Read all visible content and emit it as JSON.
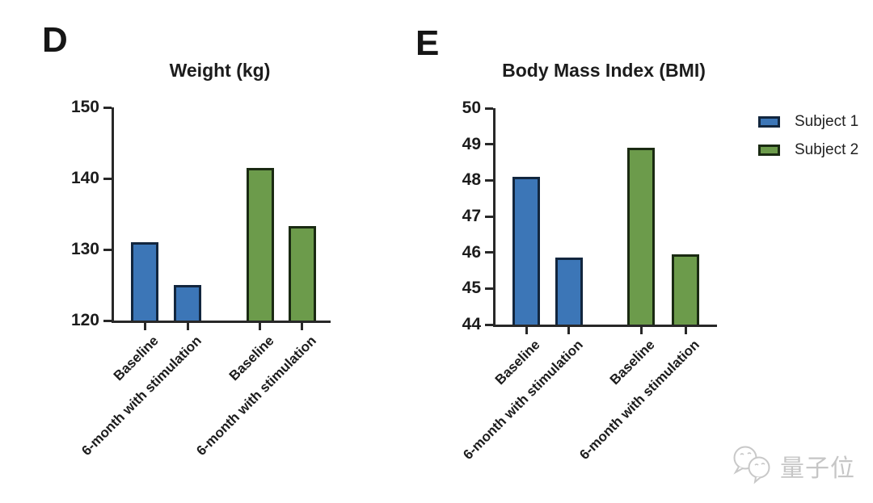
{
  "figure": {
    "background": "#ffffff",
    "axis_color": "#282828",
    "text_color": "#1c1c1c",
    "legend": {
      "items": [
        {
          "label": "Subject 1",
          "color": "#3c76b7",
          "border_color": "#12263e"
        },
        {
          "label": "Subject 2",
          "color": "#6c9b4b",
          "border_color": "#1a2a12"
        }
      ]
    },
    "watermark": {
      "brand": "量子位",
      "logo": "qbitai-chat-bubbles-icon",
      "color": "#c6c6c6"
    }
  },
  "chart_data": [
    {
      "type": "bar",
      "panel": "D",
      "title": "Weight (kg)",
      "xlabel": "",
      "ylabel": "",
      "ylim": [
        120,
        150
      ],
      "yticks": [
        120,
        130,
        140,
        150
      ],
      "grid": false,
      "categories": [
        "Baseline",
        "6-month with stimulation"
      ],
      "series": [
        {
          "name": "Subject 1",
          "color": "#3c76b7",
          "border_color": "#12263e",
          "values": [
            131,
            125
          ]
        },
        {
          "name": "Subject 2",
          "color": "#6c9b4b",
          "border_color": "#1a2a12",
          "values": [
            141.5,
            133.3
          ]
        }
      ],
      "legend_position": "right-of-figure"
    },
    {
      "type": "bar",
      "panel": "E",
      "title": "Body Mass Index (BMI)",
      "xlabel": "",
      "ylabel": "",
      "ylim": [
        44,
        50
      ],
      "yticks": [
        44,
        45,
        46,
        47,
        48,
        49,
        50
      ],
      "grid": false,
      "categories": [
        "Baseline",
        "6-month with stimulation"
      ],
      "series": [
        {
          "name": "Subject 1",
          "color": "#3c76b7",
          "border_color": "#12263e",
          "values": [
            48.1,
            45.85
          ]
        },
        {
          "name": "Subject 2",
          "color": "#6c9b4b",
          "border_color": "#1a2a12",
          "values": [
            48.9,
            45.95
          ]
        }
      ],
      "legend_position": "right-of-figure"
    }
  ]
}
